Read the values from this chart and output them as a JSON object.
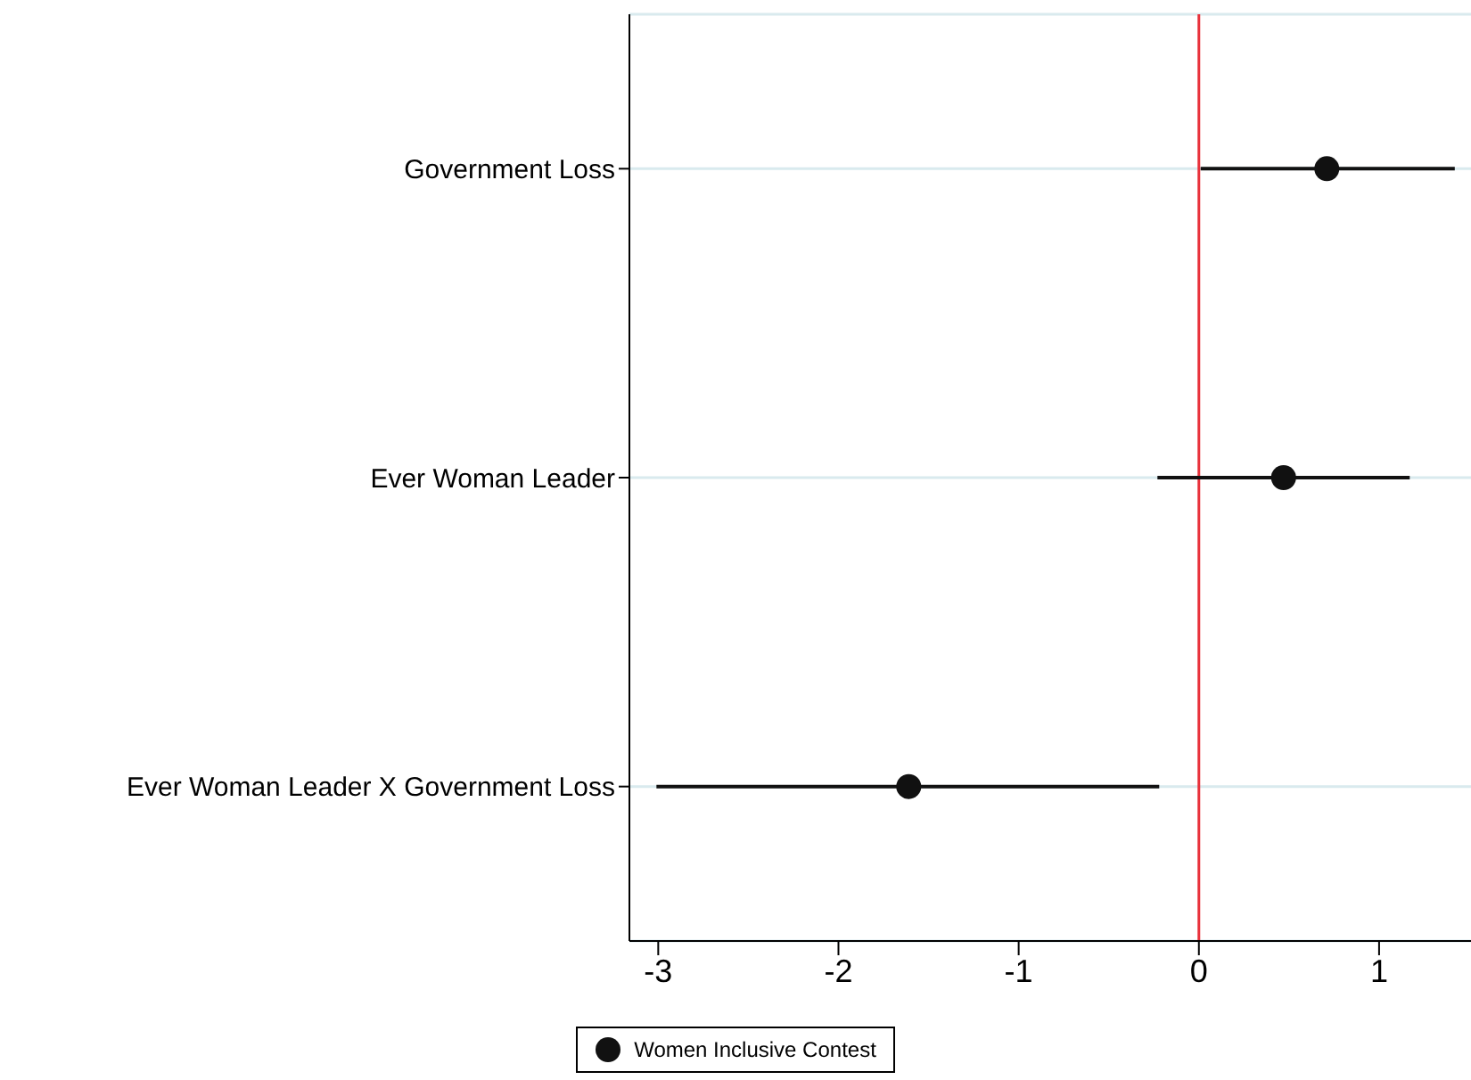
{
  "chart_data": {
    "type": "scatter",
    "orientation": "horizontal",
    "categories": [
      "Government Loss",
      "Ever Woman Leader",
      "Ever Woman Leader X Government Loss"
    ],
    "series": [
      {
        "name": "Women Inclusive Contest",
        "color": "#111111",
        "values": [
          0.71,
          0.47,
          -1.61
        ],
        "errors": [
          [
            0.01,
            1.42
          ],
          [
            -0.23,
            1.17
          ],
          [
            -3.01,
            -0.22
          ]
        ]
      }
    ],
    "xlim": [
      -3.16,
      1.51
    ],
    "xticks": [
      -3,
      -2,
      -1,
      0,
      1
    ],
    "ref_lines": [
      {
        "axis": "x",
        "value": 0,
        "color": "#e8303a"
      }
    ],
    "grid": "y",
    "legend": "bottom",
    "marker": "circle"
  }
}
